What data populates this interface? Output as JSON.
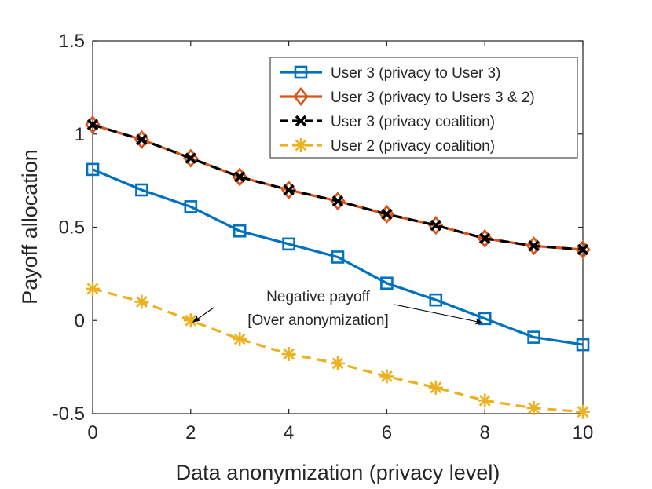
{
  "chart_data": {
    "type": "line",
    "title": "",
    "xlabel": "Data anonymization (privacy level)",
    "ylabel": "Payoff allocation",
    "xlim": [
      0,
      10
    ],
    "ylim": [
      -0.5,
      1.5
    ],
    "xticks": [
      0,
      2,
      4,
      6,
      8,
      10
    ],
    "yticks": [
      -0.5,
      0,
      0.5,
      1,
      1.5
    ],
    "xtick_labels": [
      "0",
      "2",
      "4",
      "6",
      "8",
      "10"
    ],
    "ytick_labels": [
      "-0.5",
      "0",
      "0.5",
      "1",
      "1.5"
    ],
    "grid": false,
    "legend_position": "top-right",
    "x": [
      0,
      1,
      2,
      3,
      4,
      5,
      6,
      7,
      8,
      9,
      10
    ],
    "series": [
      {
        "name": "User 3 (privacy to User 3)",
        "color": "#0072BD",
        "marker": "square",
        "line": "solid",
        "values": [
          0.81,
          0.7,
          0.61,
          0.48,
          0.41,
          0.34,
          0.2,
          0.11,
          0.01,
          -0.09,
          -0.13
        ]
      },
      {
        "name": "User 3 (privacy to Users 3 & 2)",
        "color": "#D95319",
        "marker": "diamond",
        "line": "solid",
        "values": [
          1.05,
          0.97,
          0.87,
          0.77,
          0.7,
          0.64,
          0.57,
          0.51,
          0.44,
          0.4,
          0.38
        ]
      },
      {
        "name": "User 3 (privacy coalition)",
        "color": "#000000",
        "marker": "x",
        "line": "dashed",
        "values": [
          1.05,
          0.97,
          0.87,
          0.77,
          0.7,
          0.64,
          0.57,
          0.51,
          0.44,
          0.4,
          0.38
        ]
      },
      {
        "name": "User 2 (privacy coalition)",
        "color": "#EDB120",
        "marker": "asterisk",
        "line": "dashed",
        "values": [
          0.17,
          0.1,
          0.0,
          -0.1,
          -0.18,
          -0.23,
          -0.3,
          -0.36,
          -0.43,
          -0.47,
          -0.49
        ]
      }
    ],
    "annotations": [
      {
        "text_line1": "Negative payoff",
        "text_line2": "[Over anonymization]",
        "arrow_targets": [
          [
            2,
            0.0
          ],
          [
            8,
            0.0
          ]
        ]
      }
    ]
  }
}
